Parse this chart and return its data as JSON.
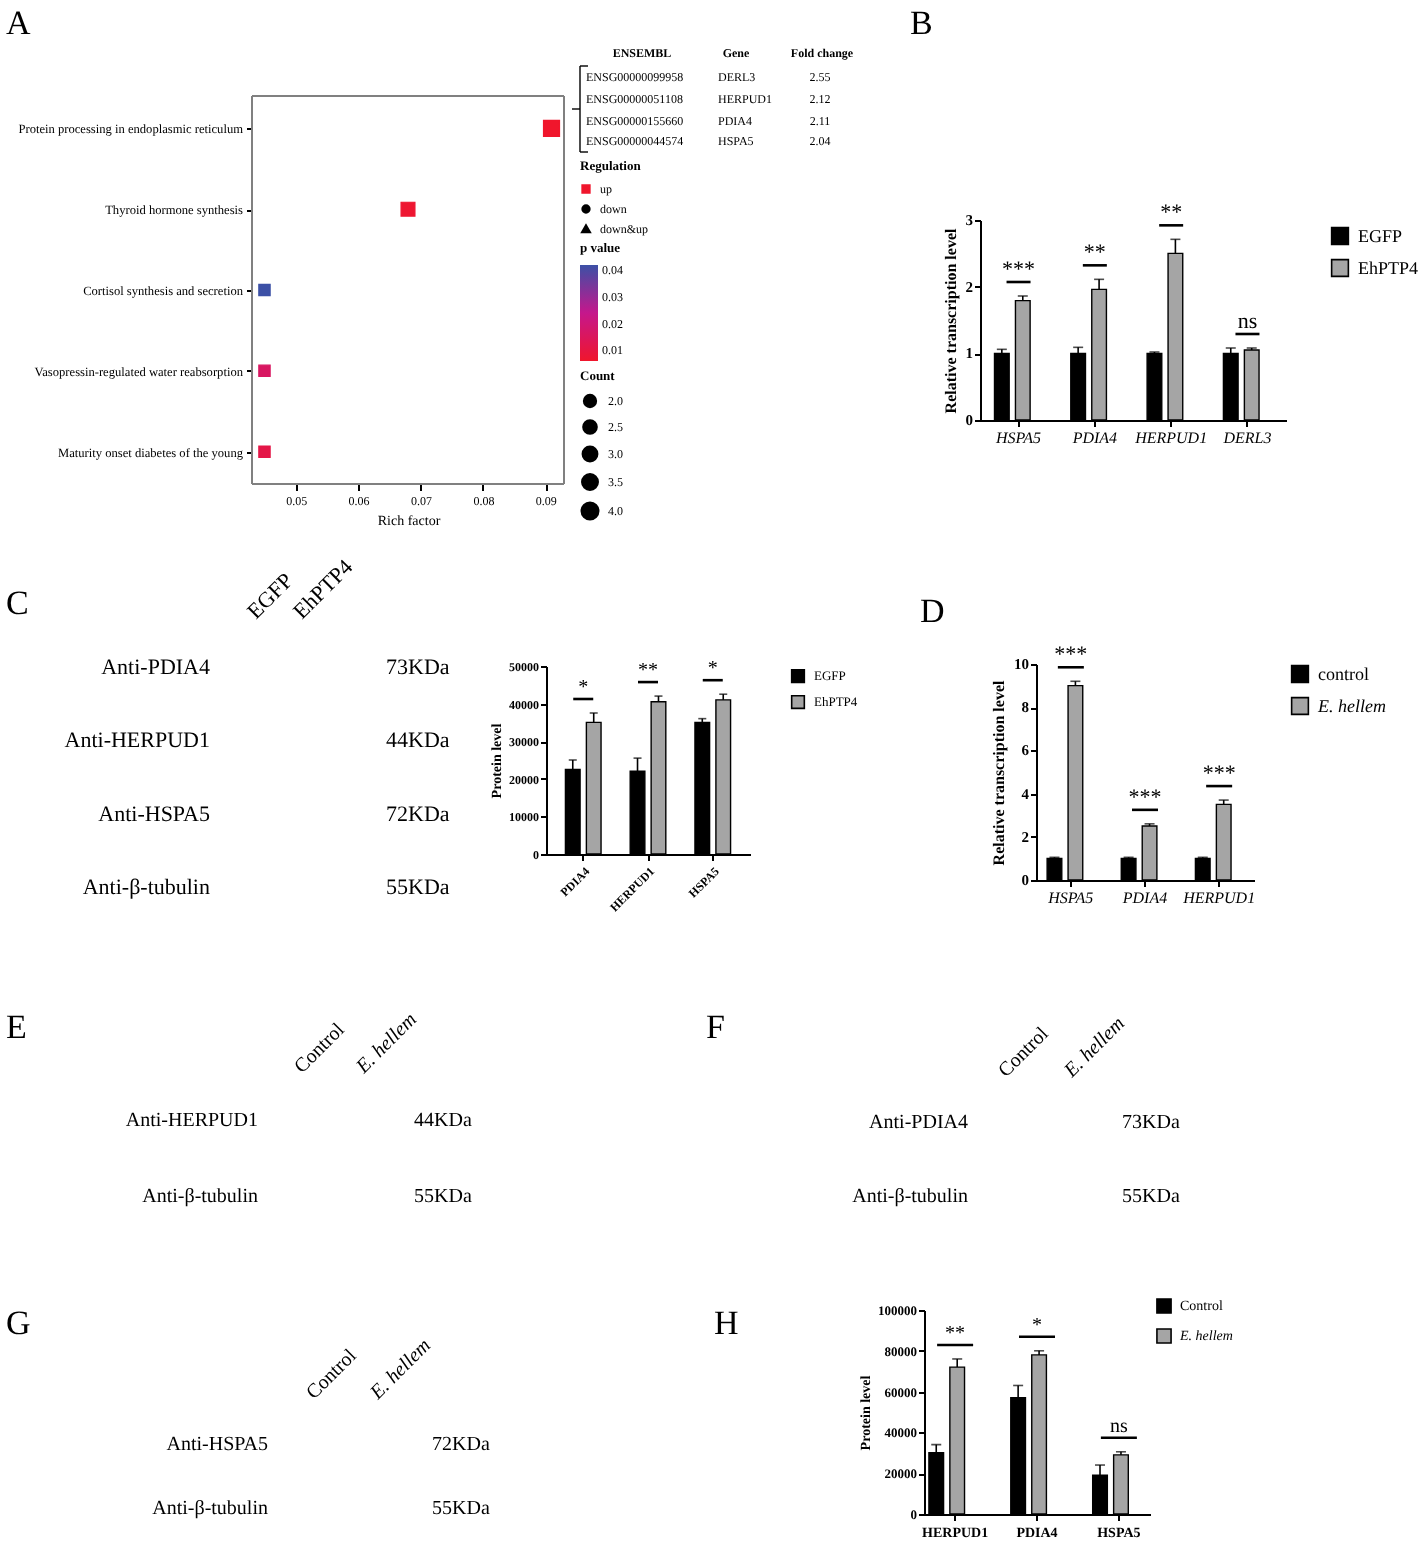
{
  "chart_data": [
    {
      "type": "bubble",
      "title": "A",
      "orientation": "horizontal",
      "categories": [
        "Protein processing in endoplasmic reticulum",
        "Thyroid hormone synthesis",
        "Cortisol synthesis and secretion",
        "Vasopressin-regulated water reabsorption",
        "Maturity onset diabetes of the young"
      ],
      "series": [
        {
          "name": "up",
          "marker": "square",
          "values": [
            0.091,
            0.068,
            0.045,
            0.045,
            0.045
          ],
          "sizes": [
            4,
            3,
            2,
            2,
            2
          ],
          "cvalues": [
            0.006,
            0.007,
            0.042,
            0.016,
            0.011
          ],
          "colors": [
            "#f0162c",
            "#ee1631",
            "#3c50a6",
            "#d81761",
            "#e41647"
          ]
        },
        {
          "name": "down",
          "marker": "circle",
          "color": "#000000",
          "values": [
            null,
            null,
            null,
            null,
            null
          ]
        },
        {
          "name": "down&up",
          "marker": "triangle",
          "color": "#000000",
          "values": [
            null,
            null,
            null,
            null,
            null
          ]
        }
      ],
      "xlabel": "Rich factor",
      "xlim": [
        0.043,
        0.093
      ],
      "xticks": [
        0.05,
        0.06,
        0.07,
        0.08,
        0.09
      ],
      "legend": "right",
      "legend_title": "Regulation",
      "clabel": "p value",
      "clim": [
        0.006,
        0.042
      ],
      "cticks": [
        0.01,
        0.02,
        0.03,
        0.04
      ],
      "size_legend": [
        {
          "value": 2,
          "label": "2.0"
        },
        {
          "value": 2.5,
          "label": "2.5"
        },
        {
          "value": 3,
          "label": "3.0"
        },
        {
          "value": 3.5,
          "label": "3.5"
        },
        {
          "value": 4,
          "label": "4.0"
        }
      ],
      "annotations": [
        "Count",
        "ENSEMBL",
        "Gene",
        "Fold change",
        "ENSG00000099958",
        "DERL3",
        "2.55",
        "ENSG00000051108",
        "HERPUD1",
        "2.12",
        "ENSG00000155660",
        "PDIA4",
        "2.11",
        "ENSG00000044574",
        "HSPA5",
        "2.04"
      ]
    },
    {
      "type": "bar",
      "title": "B",
      "categories": [
        "HSPA5",
        "PDIA4",
        "HERPUD1",
        "DERL3"
      ],
      "series": [
        {
          "name": "EGFP",
          "color": "#000000",
          "values": [
            1,
            1,
            1,
            1
          ],
          "errors": [
            0.06,
            0.09,
            0.02,
            0.08
          ]
        },
        {
          "name": "EhPTP4",
          "color": "#a5a5a5",
          "values": [
            1.79,
            1.96,
            2.5,
            1.05
          ],
          "errors": [
            0.07,
            0.15,
            0.21,
            0.03
          ]
        }
      ],
      "ylabel": "Relative transcription level",
      "ylim": [
        0,
        3
      ],
      "yticks": [
        0,
        1,
        2,
        3
      ],
      "legend": "right",
      "annotations": [
        "***",
        "**",
        "**",
        "ns"
      ]
    },
    {
      "type": "other",
      "title": "C",
      "categories": [
        "EGFP",
        "EhPTP4"
      ],
      "y_categories": [
        "Anti-PDIA4",
        "Anti-HERPUD1",
        "Anti-HSPA5",
        "Anti-β-tubulin"
      ],
      "y2_categories": [
        "73KDa",
        "44KDa",
        "72KDa",
        "55KDa"
      ]
    },
    {
      "type": "bar",
      "categories": [
        "PDIA4",
        "HERPUD1",
        "HSPA5"
      ],
      "series": [
        {
          "name": "EGFP",
          "color": "#000000",
          "values": [
            22500,
            22000,
            35000
          ],
          "errors": [
            2500,
            3500,
            1000
          ]
        },
        {
          "name": "EhPTP4",
          "color": "#a5a5a5",
          "values": [
            35000,
            40500,
            41000
          ],
          "errors": [
            2500,
            1500,
            1500
          ]
        }
      ],
      "ylabel": "Protein level",
      "ylim": [
        0,
        50000
      ],
      "yticks": [
        0,
        10000,
        20000,
        30000,
        40000,
        50000
      ],
      "legend": "right",
      "annotations": [
        "*",
        "**",
        "*"
      ]
    },
    {
      "type": "bar",
      "title": "D",
      "categories": [
        "HSPA5",
        "PDIA4",
        "HERPUD1"
      ],
      "series": [
        {
          "name": "control",
          "color": "#000000",
          "values": [
            1,
            1,
            1
          ],
          "errors": [
            0.05,
            0.05,
            0.05
          ]
        },
        {
          "name": "E. hellem",
          "color": "#a5a5a5",
          "values": [
            9.0,
            2.5,
            3.5
          ],
          "errors": [
            0.2,
            0.1,
            0.2
          ]
        }
      ],
      "ylabel": "Relative transcription level",
      "ylim": [
        0,
        10
      ],
      "yticks": [
        0,
        2,
        4,
        6,
        8,
        10
      ],
      "legend": "right",
      "annotations": [
        "***",
        "***",
        "***"
      ]
    },
    {
      "type": "other",
      "title": "E",
      "categories": [
        "Control",
        "E. hellem"
      ],
      "y_categories": [
        "Anti-HERPUD1",
        "Anti-β-tubulin"
      ],
      "y2_categories": [
        "44KDa",
        "55KDa"
      ]
    },
    {
      "type": "other",
      "title": "F",
      "categories": [
        "Control",
        "E. hellem"
      ],
      "y_categories": [
        "Anti-PDIA4",
        "Anti-β-tubulin"
      ],
      "y2_categories": [
        "73KDa",
        "55KDa"
      ]
    },
    {
      "type": "other",
      "title": "G",
      "categories": [
        "Control",
        "E. hellem"
      ],
      "y_categories": [
        "Anti-HSPA5",
        "Anti-β-tubulin"
      ],
      "y2_categories": [
        "72KDa",
        "55KDa"
      ]
    },
    {
      "type": "bar",
      "title": "H",
      "categories": [
        "HERPUD1",
        "PDIA4",
        "HSPA5"
      ],
      "series": [
        {
          "name": "Control",
          "color": "#000000",
          "values": [
            30000,
            57000,
            19000
          ],
          "errors": [
            4000,
            6000,
            5000
          ]
        },
        {
          "name": "E. hellem",
          "color": "#a5a5a5",
          "values": [
            72000,
            78000,
            29000
          ],
          "errors": [
            4000,
            2000,
            1500
          ]
        }
      ],
      "ylabel": "Protein level",
      "ylim": [
        0,
        100000
      ],
      "yticks": [
        0,
        20000,
        40000,
        60000,
        80000,
        100000
      ],
      "legend": "right",
      "annotations": [
        "**",
        "*",
        "ns"
      ]
    }
  ]
}
